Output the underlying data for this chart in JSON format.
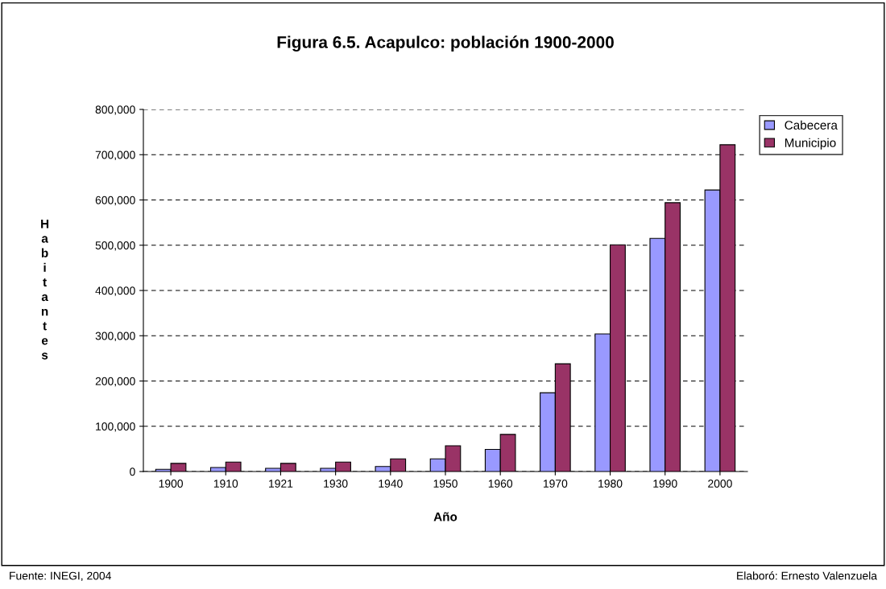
{
  "chart_data": {
    "type": "bar",
    "title": "Figura 6.5. Acapulco: población 1900-2000",
    "xlabel": "Año",
    "ylabel": "Habitantes",
    "categories": [
      "1900",
      "1910",
      "1921",
      "1930",
      "1940",
      "1950",
      "1960",
      "1970",
      "1980",
      "1990",
      "2000"
    ],
    "series": [
      {
        "name": "Cabecera",
        "color": "#9999ff",
        "values": [
          5000,
          9000,
          7000,
          7000,
          11000,
          28000,
          49000,
          174000,
          304000,
          515000,
          622000
        ]
      },
      {
        "name": "Municipio",
        "color": "#993366",
        "values": [
          18000,
          21000,
          18000,
          21000,
          28000,
          57000,
          82000,
          238000,
          501000,
          594000,
          722000
        ]
      }
    ],
    "ylim": [
      0,
      800000
    ],
    "yticks": [
      {
        "value": 0,
        "label": "0"
      },
      {
        "value": 100000,
        "label": "100,000"
      },
      {
        "value": 200000,
        "label": "200,000"
      },
      {
        "value": 300000,
        "label": "300,000"
      },
      {
        "value": 400000,
        "label": "400,000"
      },
      {
        "value": 500000,
        "label": "500,000"
      },
      {
        "value": 600000,
        "label": "600,000"
      },
      {
        "value": 700000,
        "label": "700,000"
      },
      {
        "value": 800000,
        "label": "800,000"
      }
    ],
    "grid": "y",
    "legend": "right",
    "annotations": [
      "Fuente: INEGI, 2004",
      "Elaboró: Ernesto Valenzuela"
    ]
  }
}
